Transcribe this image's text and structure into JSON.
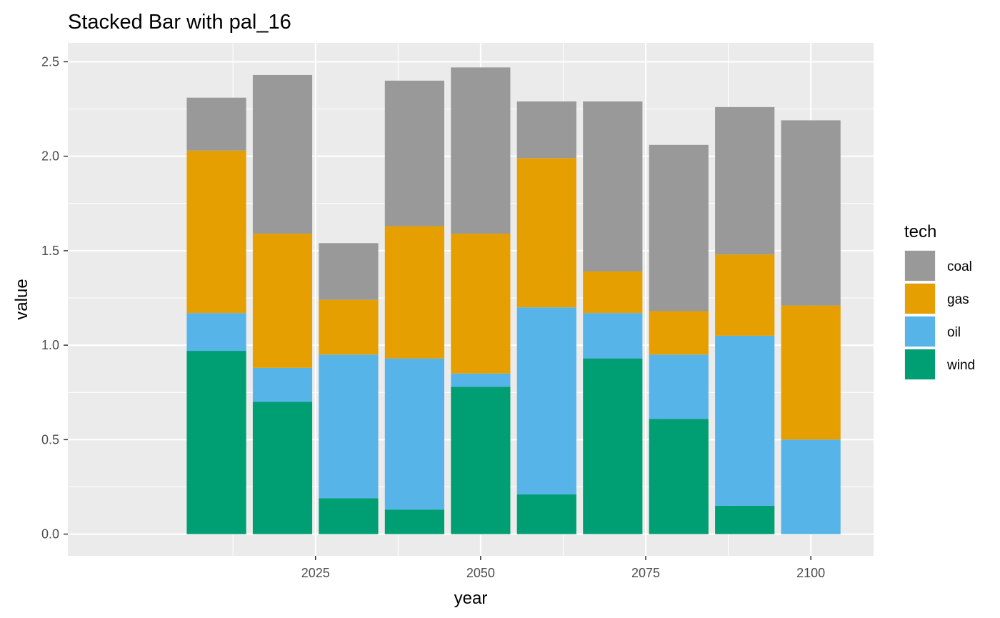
{
  "chart_data": {
    "type": "bar",
    "stacked": true,
    "title": "Stacked Bar with pal_16",
    "xlabel": "year",
    "ylabel": "value",
    "x": [
      2010,
      2020,
      2030,
      2040,
      2050,
      2060,
      2070,
      2080,
      2090,
      2100
    ],
    "xticks": [
      "2025",
      "2050",
      "2075",
      "2100"
    ],
    "yticks": [
      "0.0",
      "0.5",
      "1.0",
      "1.5",
      "2.0",
      "2.5"
    ],
    "xlim": [
      1987.5,
      2109.5
    ],
    "ylim": [
      -0.115,
      2.6
    ],
    "grid": true,
    "legend": {
      "title": "tech",
      "position": "right",
      "entries": [
        "coal",
        "gas",
        "oil",
        "wind"
      ]
    },
    "series": [
      {
        "name": "wind",
        "color": "#009E73",
        "values": [
          0.97,
          0.7,
          0.19,
          0.13,
          0.78,
          0.21,
          0.93,
          0.61,
          0.15,
          0.0
        ]
      },
      {
        "name": "oil",
        "color": "#56B4E9",
        "values": [
          0.2,
          0.18,
          0.76,
          0.8,
          0.07,
          0.99,
          0.24,
          0.34,
          0.9,
          0.5
        ]
      },
      {
        "name": "gas",
        "color": "#E69F00",
        "values": [
          0.86,
          0.71,
          0.29,
          0.7,
          0.74,
          0.79,
          0.22,
          0.23,
          0.43,
          0.71
        ]
      },
      {
        "name": "coal",
        "color": "#999999",
        "values": [
          0.28,
          0.84,
          0.3,
          0.77,
          0.88,
          0.3,
          0.9,
          0.88,
          0.78,
          0.98
        ]
      }
    ]
  }
}
